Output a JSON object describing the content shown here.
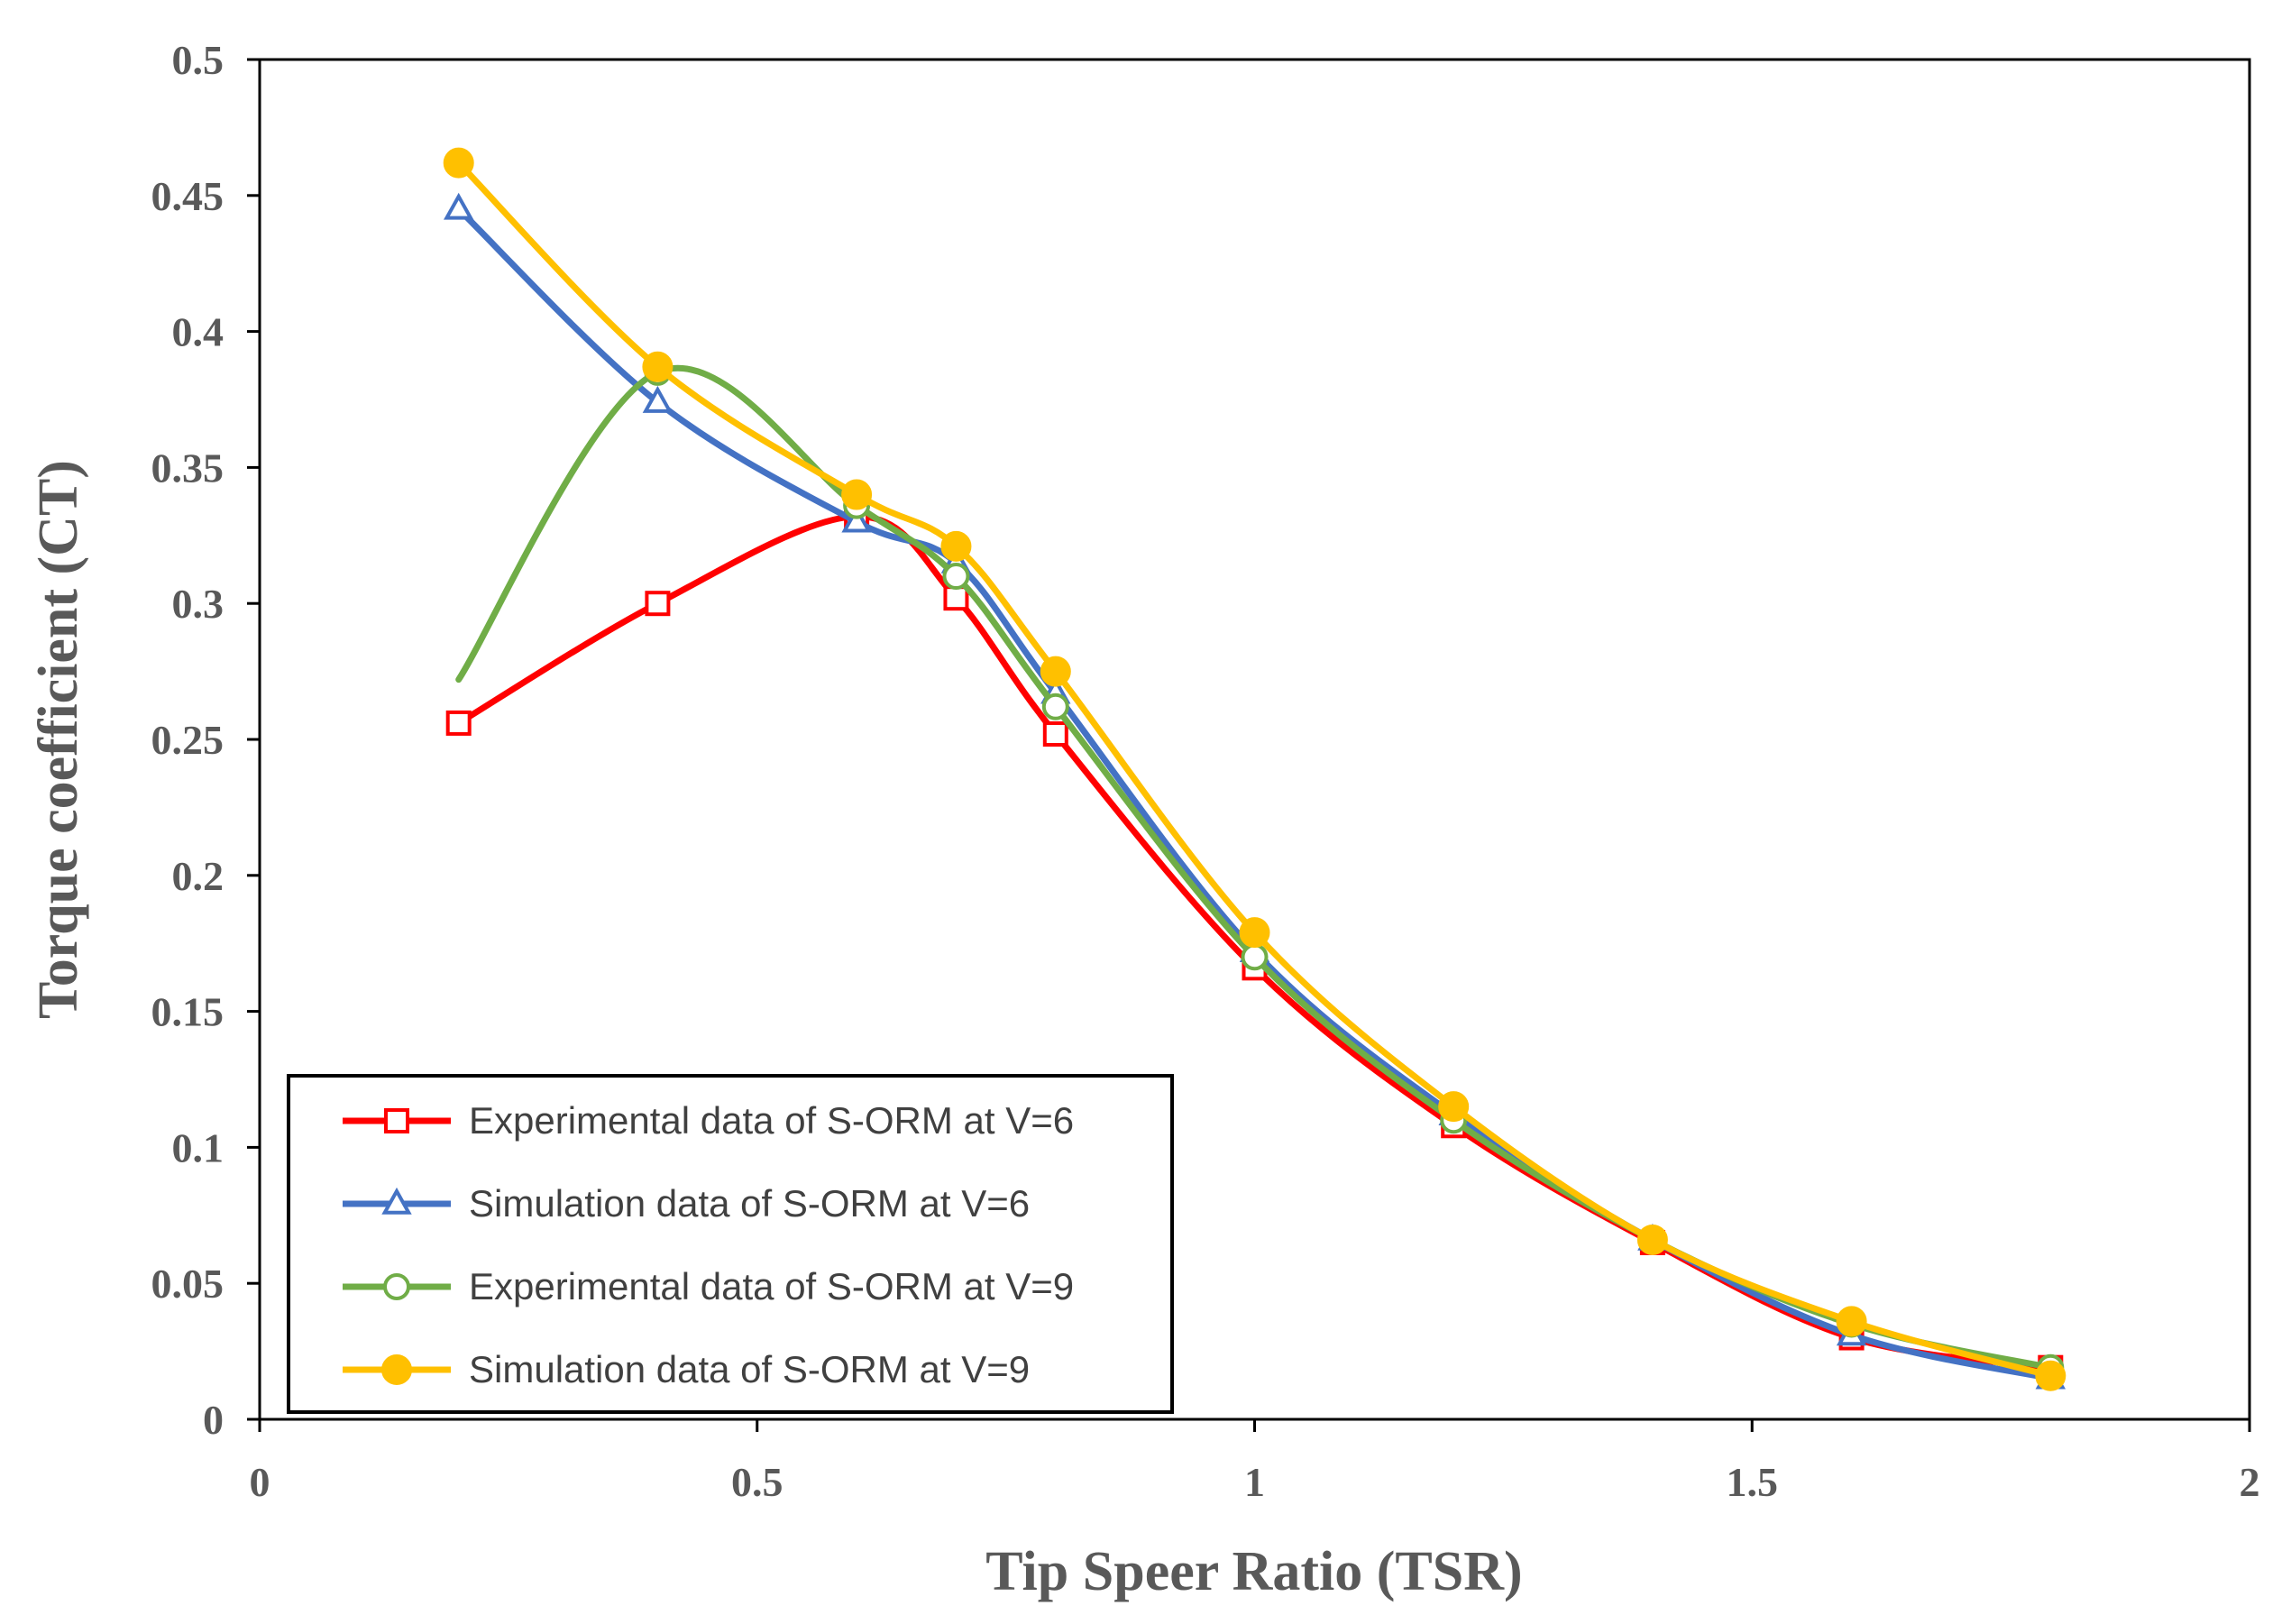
{
  "chart_data": {
    "type": "line",
    "title": "",
    "xlabel": "Tip Speer Ratio (TSR)",
    "ylabel": "Torque coefficient (CT)",
    "xlim": [
      0,
      2
    ],
    "ylim": [
      0,
      0.5
    ],
    "x_ticks": [
      0,
      0.5,
      1,
      1.5,
      2
    ],
    "x_tick_labels": [
      "0",
      "0.5",
      "1",
      "1.5",
      "2"
    ],
    "y_ticks": [
      0,
      0.05,
      0.1,
      0.15,
      0.2,
      0.25,
      0.3,
      0.35,
      0.4,
      0.45,
      0.5
    ],
    "y_tick_labels": [
      "0",
      "0.05",
      "0.1",
      "0.15",
      "0.2",
      "0.25",
      "0.3",
      "0.35",
      "0.4",
      "0.45",
      "0.5"
    ],
    "grid": false,
    "legend_position": "bottom-left",
    "series": [
      {
        "name": "Experimental data of S-ORM at V=6",
        "color": "#ff0000",
        "marker": "open-square",
        "x": [
          0.2,
          0.4,
          0.6,
          0.7,
          0.8,
          1.0,
          1.2,
          1.4,
          1.6,
          1.8
        ],
        "y": [
          0.256,
          0.3,
          0.332,
          0.302,
          0.252,
          0.166,
          0.108,
          0.065,
          0.03,
          0.019
        ],
        "markers_from": 0
      },
      {
        "name": "Simulation data of S-ORM at V=6",
        "color": "#4472c4",
        "marker": "open-triangle",
        "x": [
          0.2,
          0.4,
          0.6,
          0.7,
          0.8,
          1.0,
          1.2,
          1.4,
          1.6,
          1.8
        ],
        "y": [
          0.445,
          0.374,
          0.33,
          0.315,
          0.267,
          0.172,
          0.112,
          0.066,
          0.031,
          0.015
        ],
        "markers_from": 0
      },
      {
        "name": "Experimental data of S-ORM at V=9",
        "color": "#70ad47",
        "marker": "open-circle",
        "x": [
          0.2,
          0.4,
          0.6,
          0.7,
          0.8,
          1.0,
          1.2,
          1.4,
          1.6,
          1.8
        ],
        "y": [
          0.272,
          0.385,
          0.336,
          0.31,
          0.262,
          0.17,
          0.11,
          0.066,
          0.035,
          0.019
        ],
        "markers_from": 1
      },
      {
        "name": "Simulation data of S-ORM at V=9",
        "color": "#ffc000",
        "marker": "filled-circle",
        "x": [
          0.2,
          0.4,
          0.6,
          0.7,
          0.8,
          1.0,
          1.2,
          1.4,
          1.6,
          1.8
        ],
        "y": [
          0.462,
          0.387,
          0.34,
          0.321,
          0.275,
          0.179,
          0.115,
          0.066,
          0.036,
          0.016
        ],
        "markers_from": 0
      }
    ]
  }
}
